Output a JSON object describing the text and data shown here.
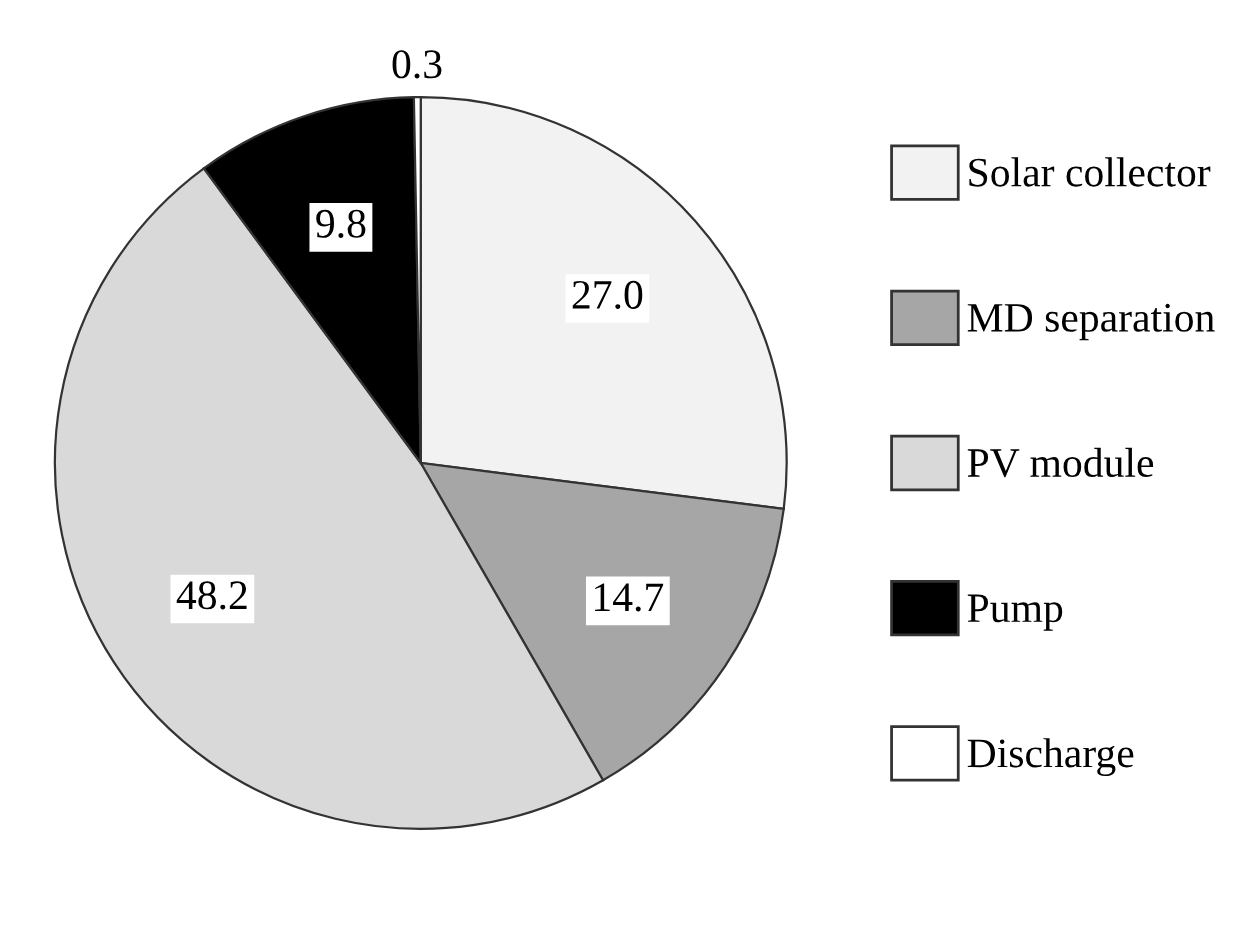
{
  "chart_data": {
    "type": "pie",
    "categories": [
      "Solar collector",
      "MD separation",
      "PV module",
      "Pump",
      "Discharge"
    ],
    "values": [
      27.0,
      14.7,
      48.2,
      9.8,
      0.3
    ],
    "colors": [
      "#f2f2f2",
      "#a6a6a6",
      "#d9d9d9",
      "#000000",
      "#ffffff"
    ],
    "value_labels": [
      "27.0",
      "14.7",
      "48.2",
      "9.8",
      "0.3"
    ],
    "legend": "right"
  }
}
